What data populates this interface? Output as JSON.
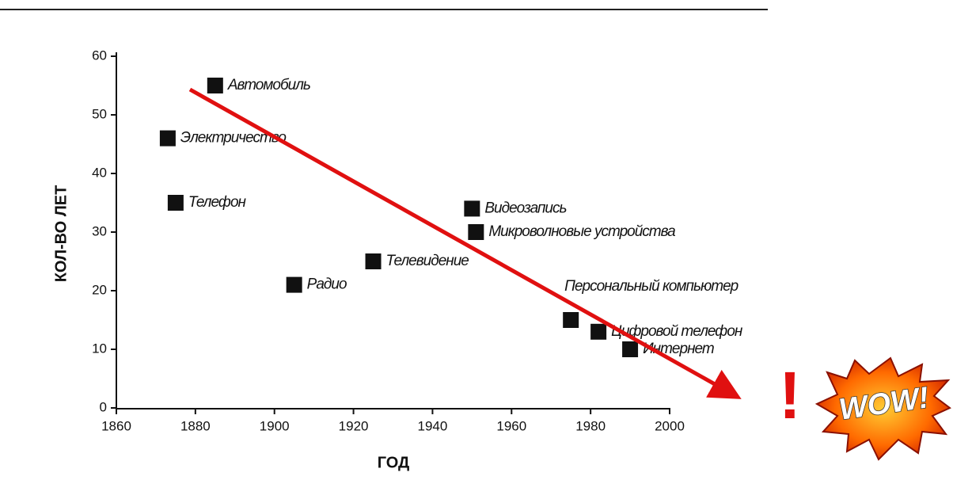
{
  "chart_data": {
    "type": "scatter",
    "x": [
      1885,
      1873,
      1875,
      1905,
      1925,
      1950,
      1951,
      1975,
      1982,
      1990
    ],
    "values": [
      55,
      46,
      35,
      21,
      25,
      34,
      30,
      15,
      13,
      10
    ],
    "labels": [
      "Автомобиль",
      "Электричество",
      "Телефон",
      "Радио",
      "Телевидение",
      "Видеозапись",
      "Микроволновые устройства",
      "Персональный компьютер",
      "Цифровой телефон",
      "Интернет"
    ],
    "color": "#111111",
    "xlim": [
      1860,
      2000
    ],
    "ylim": [
      0,
      60
    ],
    "xticks": [
      1860,
      1880,
      1900,
      1920,
      1940,
      1960,
      1980,
      2000
    ],
    "yticks": [
      0,
      10,
      20,
      30,
      40,
      50,
      60
    ],
    "xlabel": "ГОД",
    "ylabel": "КОЛ-ВО ЛЕТ",
    "annotations": [
      "!",
      "WOW!"
    ]
  }
}
